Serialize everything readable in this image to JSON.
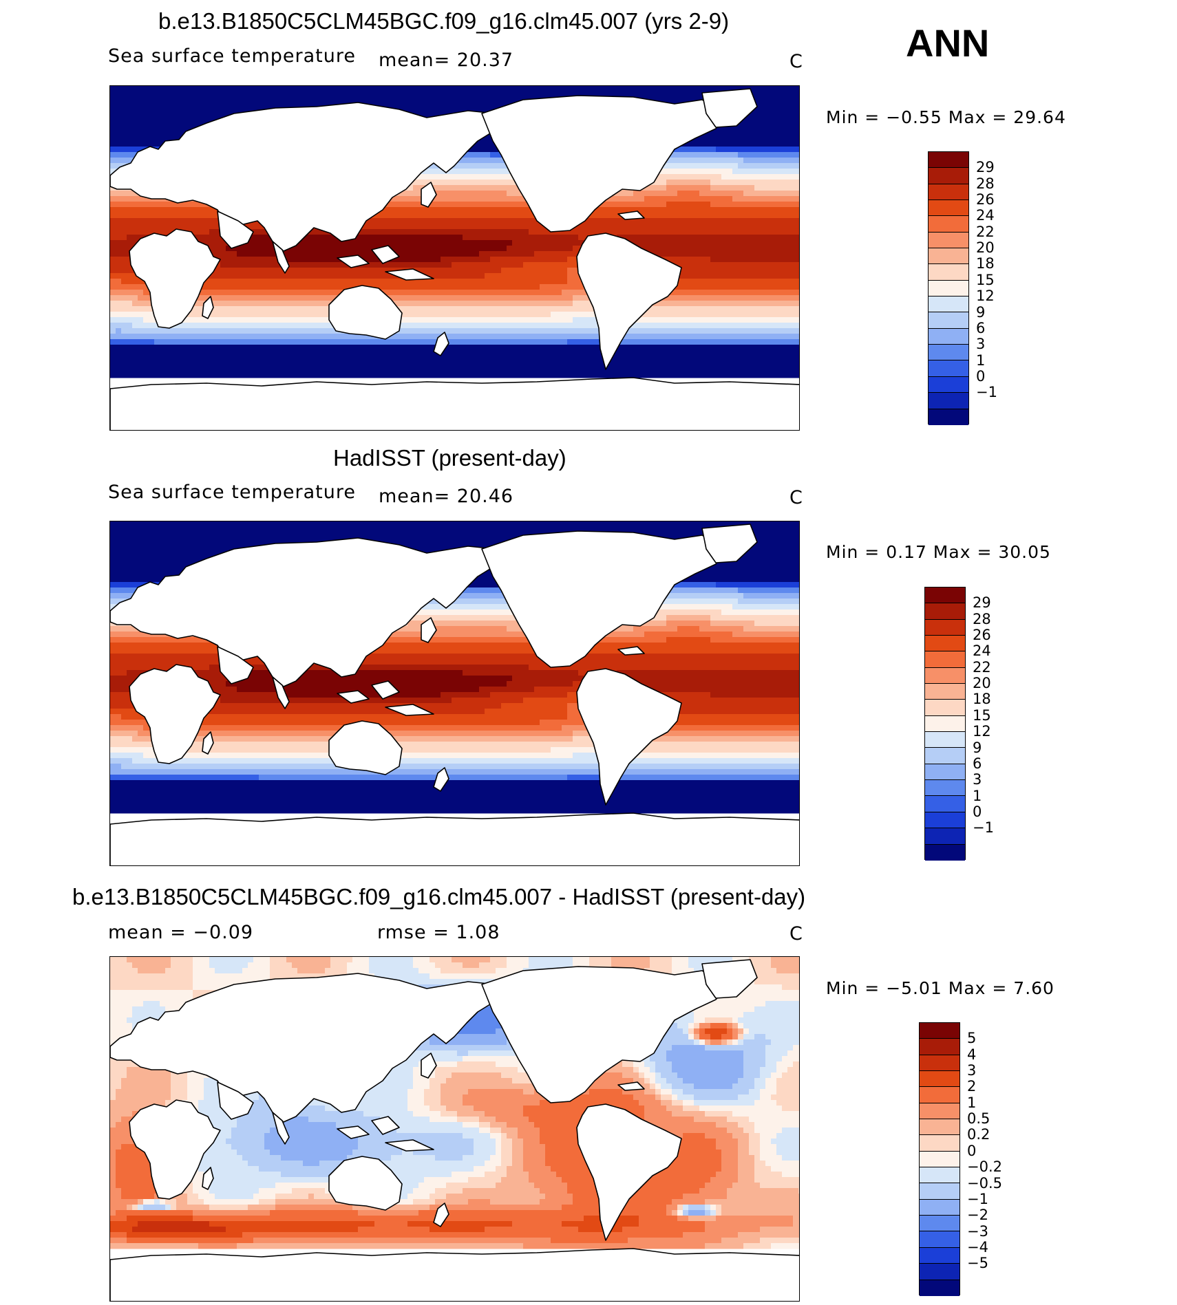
{
  "season": "ANN",
  "panels": [
    {
      "title": "b.e13.B1850C5CLM45BGC.f09_g16.clm45.007 (yrs 2-9)",
      "variable": "Sea surface temperature",
      "stat1": "mean=   20.37",
      "stat2": "",
      "units": "C",
      "minmax": "Min =   −0.55 Max =   29.64",
      "field": "model",
      "colorbar": {
        "labels": [
          "29",
          "28",
          "26",
          "24",
          "22",
          "20",
          "18",
          "15",
          "12",
          "9",
          "6",
          "3",
          "1",
          "0",
          "−1"
        ],
        "colors": [
          "#7a0404",
          "#a81c08",
          "#c9300c",
          "#e24a14",
          "#f26c3a",
          "#f79068",
          "#f9b394",
          "#fdd8c4",
          "#fdf2ea",
          "#d6e6f8",
          "#b5cef6",
          "#8fb0f4",
          "#5e89ee",
          "#3560e6",
          "#1b3fd8",
          "#0d24b4",
          "#02087a"
        ]
      }
    },
    {
      "title": "HadISST (present-day)",
      "variable": "Sea surface temperature",
      "stat1": "mean=   20.46",
      "stat2": "",
      "units": "C",
      "minmax": "Min =    0.17 Max =   30.05",
      "field": "obs",
      "colorbar": {
        "labels": [
          "29",
          "28",
          "26",
          "24",
          "22",
          "20",
          "18",
          "15",
          "12",
          "9",
          "6",
          "3",
          "1",
          "0",
          "−1"
        ],
        "colors": [
          "#7a0404",
          "#a81c08",
          "#c9300c",
          "#e24a14",
          "#f26c3a",
          "#f79068",
          "#f9b394",
          "#fdd8c4",
          "#fdf2ea",
          "#d6e6f8",
          "#b5cef6",
          "#8fb0f4",
          "#5e89ee",
          "#3560e6",
          "#1b3fd8",
          "#0d24b4",
          "#02087a"
        ]
      }
    },
    {
      "title": "b.e13.B1850C5CLM45BGC.f09_g16.clm45.007 - HadISST (present-day)",
      "variable": "",
      "stat1": "mean =   −0.09",
      "stat2": "rmse =    1.08",
      "units": "C",
      "minmax": "Min =   −5.01 Max =    7.60",
      "field": "diff",
      "colorbar": {
        "labels": [
          "5",
          "4",
          "3",
          "2",
          "1",
          "0.5",
          "0.2",
          "0",
          "−0.2",
          "−0.5",
          "−1",
          "−2",
          "−3",
          "−4",
          "−5"
        ],
        "colors": [
          "#7a0404",
          "#a81c08",
          "#c9300c",
          "#e24a14",
          "#f26c3a",
          "#f79068",
          "#f9b394",
          "#fdd8c4",
          "#fdf2ea",
          "#d6e6f8",
          "#b5cef6",
          "#8fb0f4",
          "#5e89ee",
          "#3560e6",
          "#1b3fd8",
          "#0d24b4",
          "#02087a"
        ]
      }
    }
  ]
}
